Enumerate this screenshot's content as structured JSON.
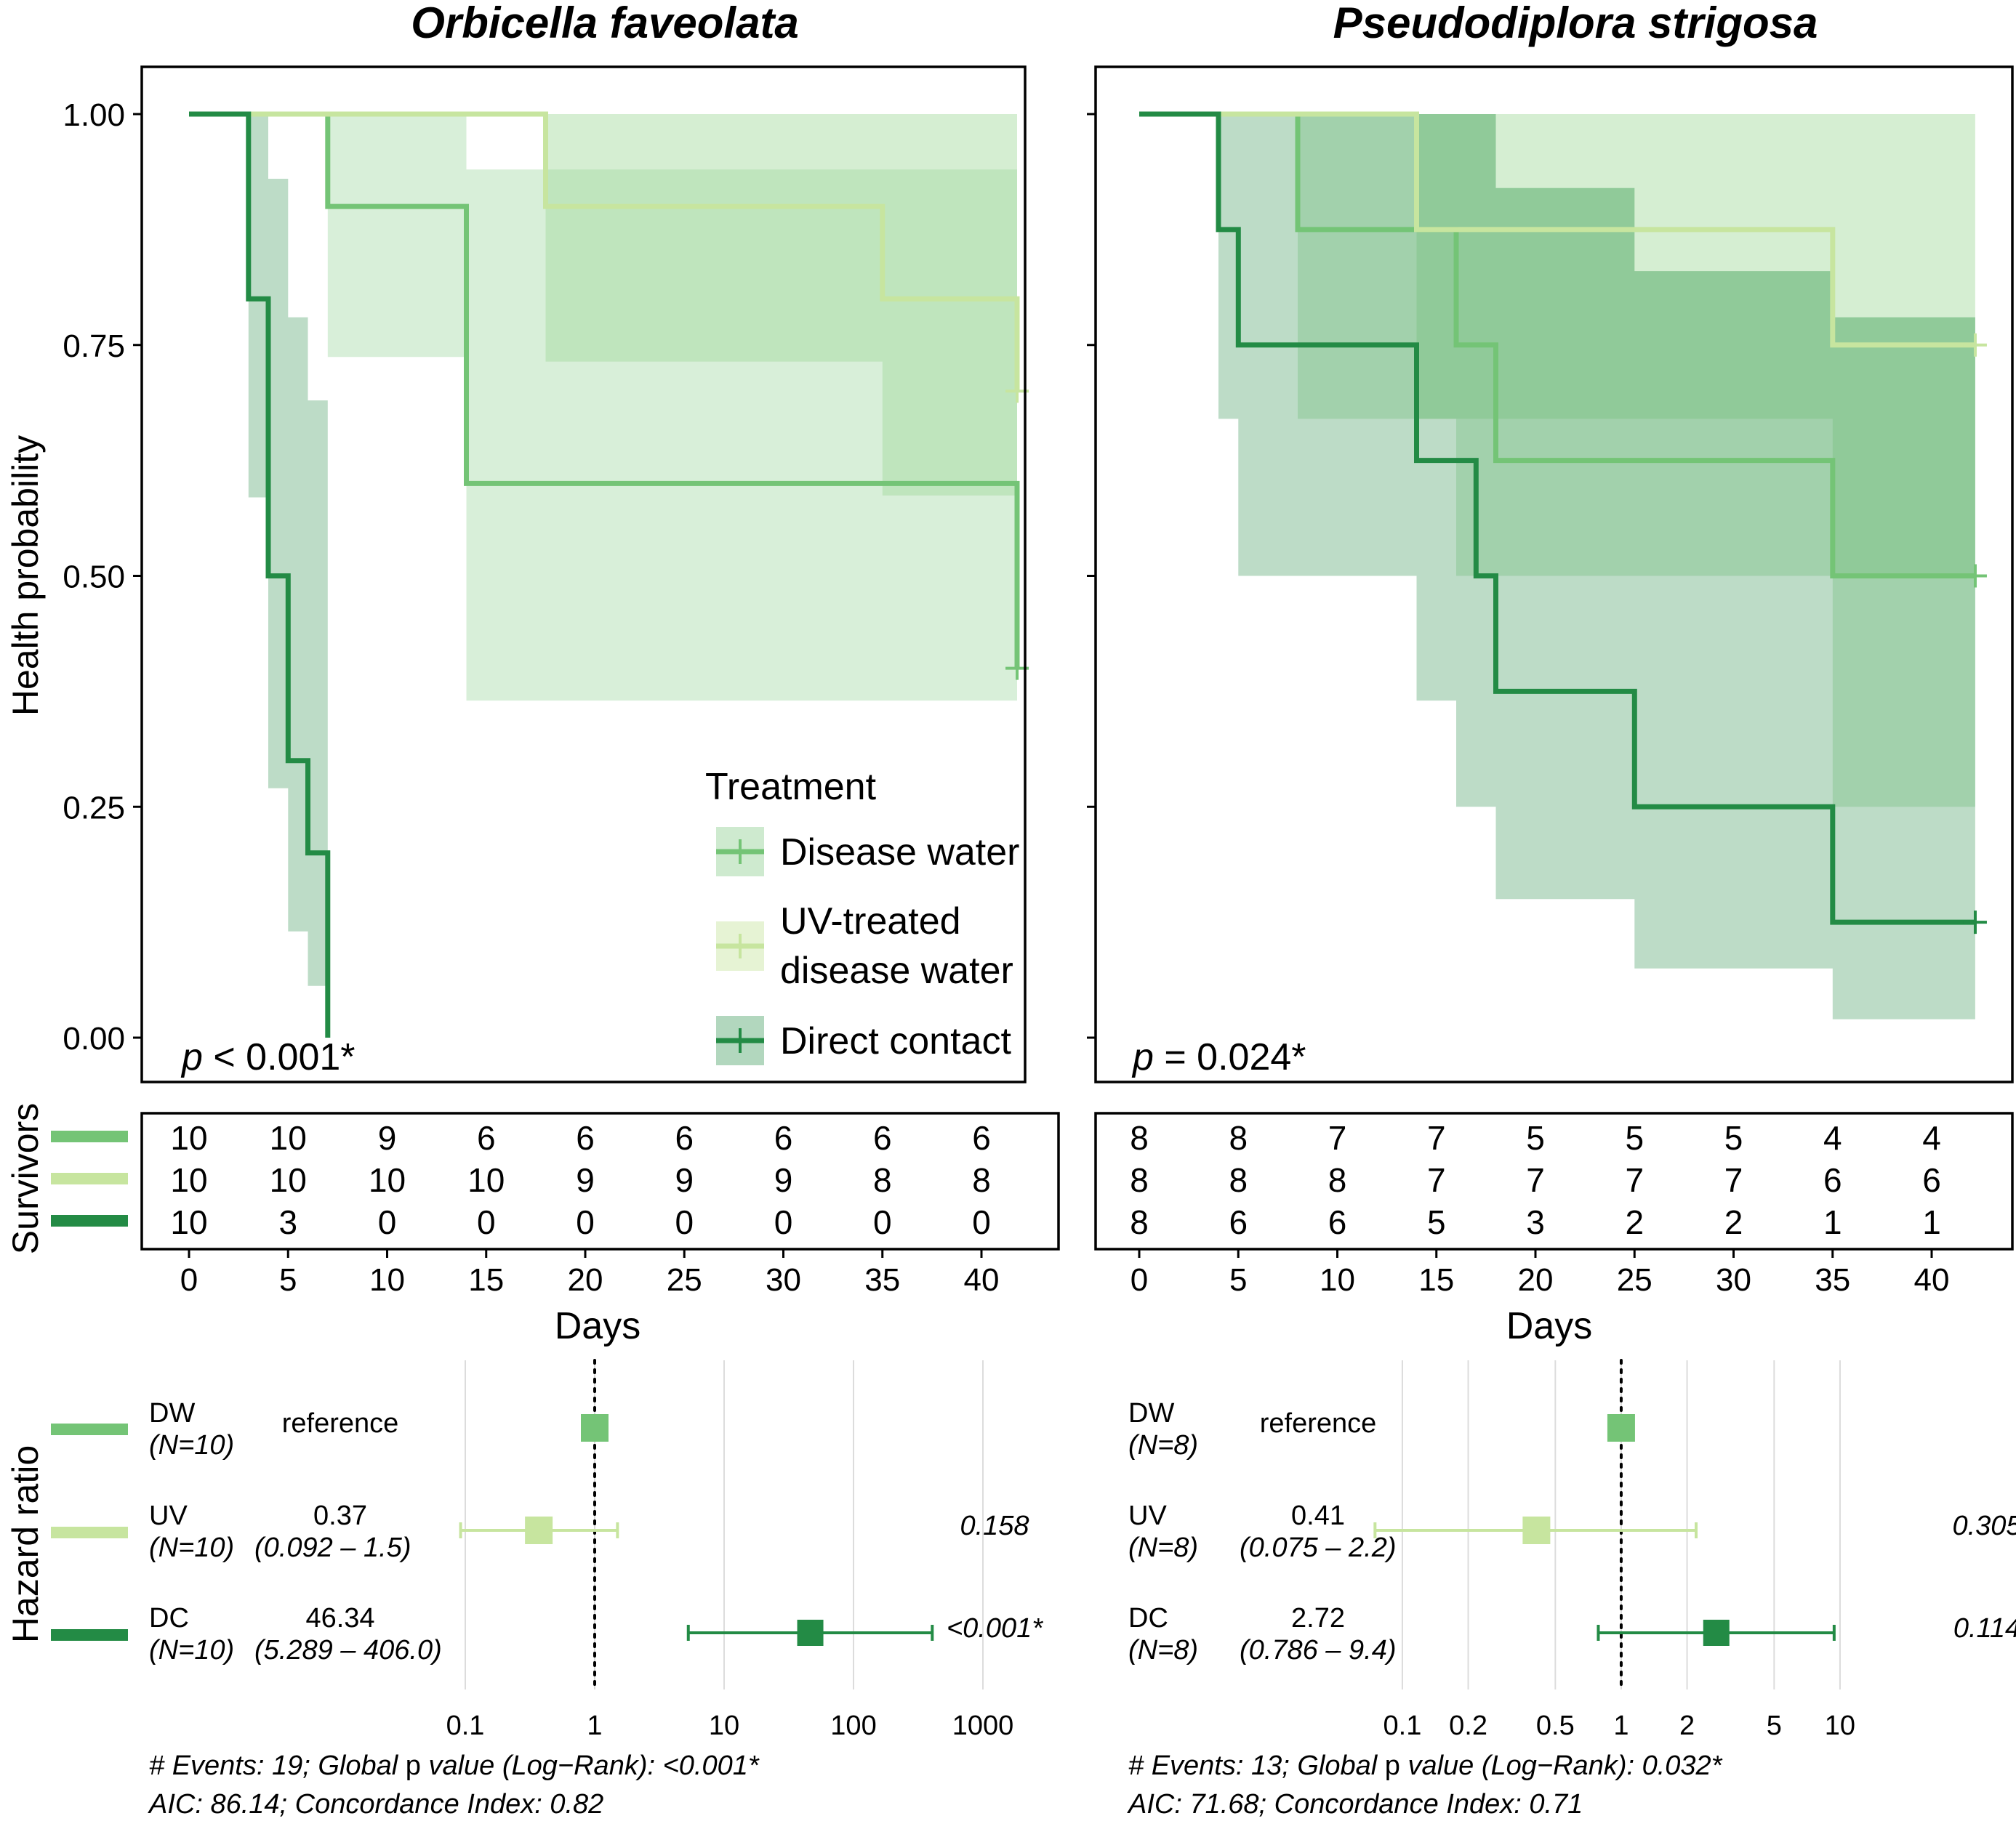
{
  "colors": {
    "disease_water": "#74c476",
    "uv_treated": "#c7e59f",
    "direct_contact": "#238b45",
    "band_dw": "#74c476",
    "band_uv": "#a1d99b",
    "band_dc": "#238b45"
  },
  "legend": {
    "title": "Treatment",
    "items": [
      "Disease water",
      "UV-treated\ndisease water",
      "Direct contact"
    ]
  },
  "labels": {
    "y_km": "Health probability",
    "y_survivors": "Survivors",
    "y_hr": "Hazard ratio",
    "x_days": "Days"
  },
  "chart_data": [
    {
      "type": "line",
      "title": "Orbicella faveolata",
      "ylabel": "Health probability",
      "xlabel": "Days",
      "xlim": [
        -2,
        43
      ],
      "ylim": [
        0,
        1
      ],
      "x_ticks": [
        0,
        5,
        10,
        15,
        20,
        25,
        30,
        35,
        40
      ],
      "y_ticks": [
        "0.00",
        "0.25",
        "0.50",
        "0.75",
        "1.00"
      ],
      "p_prefix": "p",
      "p_text": " < 0.001*",
      "series": [
        {
          "name": "Disease water",
          "steps": [
            [
              0,
              1.0
            ],
            [
              7,
              0.9
            ],
            [
              14,
              0.6
            ],
            [
              41.8,
              0.4
            ]
          ],
          "end": 41.8,
          "band": [
            [
              0,
              1.0,
              1.0
            ],
            [
              7,
              0.737,
              1.0
            ],
            [
              14,
              0.365,
              0.94
            ]
          ],
          "censor": [
            [
              41.8,
              0.4
            ]
          ]
        },
        {
          "name": "UV-treated disease water",
          "steps": [
            [
              0,
              1.0
            ],
            [
              18,
              0.9
            ],
            [
              35,
              0.8
            ],
            [
              41.8,
              0.7
            ]
          ],
          "end": 41.8,
          "band": [
            [
              0,
              1.0,
              1.0
            ],
            [
              18,
              0.732,
              1.0
            ],
            [
              35,
              0.587,
              1.0
            ],
            [
              41.8,
              0.4,
              0.86
            ]
          ],
          "censor": [
            [
              41.8,
              0.7
            ]
          ]
        },
        {
          "name": "Direct contact",
          "steps": [
            [
              0,
              1.0
            ],
            [
              3,
              0.8
            ],
            [
              4,
              0.5
            ],
            [
              5,
              0.3
            ],
            [
              6,
              0.2
            ],
            [
              7,
              0.0
            ]
          ],
          "end": 7,
          "band": [
            [
              0,
              1.0,
              1.0
            ],
            [
              3,
              0.585,
              1.0
            ],
            [
              4,
              0.27,
              0.93
            ],
            [
              5,
              0.115,
              0.78
            ],
            [
              6,
              0.056,
              0.69
            ],
            [
              7,
              0.0,
              0.0
            ]
          ],
          "censor": []
        }
      ],
      "risk_table": {
        "times": [
          0,
          5,
          10,
          15,
          20,
          25,
          30,
          35,
          40
        ],
        "rows": [
          [
            "10",
            "10",
            "9",
            "6",
            "6",
            "6",
            "6",
            "6",
            "6"
          ],
          [
            "10",
            "10",
            "10",
            "10",
            "9",
            "9",
            "9",
            "8",
            "8"
          ],
          [
            "10",
            "3",
            "0",
            "0",
            "0",
            "0",
            "0",
            "0",
            "0"
          ]
        ]
      },
      "forest": {
        "scale": "log",
        "x_ticks": [
          "0.1",
          "1",
          "10",
          "100",
          "1000"
        ],
        "x_tick_values": [
          0.1,
          1,
          10,
          100,
          1000
        ],
        "xlim_log10": [
          -1.0,
          3.0
        ],
        "rows": [
          {
            "label": "DW",
            "n": "(N=10)",
            "hr": "reference",
            "ci": "",
            "p": "",
            "estimate": 1,
            "lo": null,
            "hi": null
          },
          {
            "label": "UV",
            "n": "(N=10)",
            "hr": "0.37",
            "ci": "(0.092 –    1.5)",
            "p": "0.158",
            "estimate": 0.37,
            "lo": 0.092,
            "hi": 1.5
          },
          {
            "label": "DC",
            "n": "(N=10)",
            "hr": "46.34",
            "ci": "(5.289 – 406.0)",
            "p": "<0.001*",
            "estimate": 46.34,
            "lo": 5.289,
            "hi": 406.0
          }
        ],
        "footer1_a": "# Events: 19; Global ",
        "footer1_b": "p",
        "footer1_c": " value (Log−Rank): <0.001*",
        "footer2": "AIC: 86.14; Concordance Index: 0.82"
      }
    },
    {
      "type": "line",
      "title": "Pseudodiplora strigosa",
      "ylabel": "Health probability",
      "xlabel": "Days",
      "xlim": [
        -2,
        43
      ],
      "ylim": [
        0,
        1
      ],
      "x_ticks": [
        0,
        5,
        10,
        15,
        20,
        25,
        30,
        35,
        40
      ],
      "y_ticks": [
        "0.00",
        "0.25",
        "0.50",
        "0.75",
        "1.00"
      ],
      "p_prefix": "p",
      "p_text": " = 0.024*",
      "series": [
        {
          "name": "Disease water",
          "steps": [
            [
              0,
              1.0
            ],
            [
              8,
              0.875
            ],
            [
              16,
              0.75
            ],
            [
              18,
              0.625
            ],
            [
              35,
              0.5
            ]
          ],
          "end": 42.2,
          "band": [
            [
              0,
              1.0,
              1.0
            ],
            [
              8,
              0.67,
              1.0
            ],
            [
              16,
              0.5,
              1.0
            ],
            [
              18,
              0.5,
              0.92
            ],
            [
              25,
              0.5,
              0.83
            ],
            [
              35,
              0.25,
              0.78
            ]
          ],
          "censor": [
            [
              42.2,
              0.5
            ]
          ]
        },
        {
          "name": "UV-treated disease water",
          "steps": [
            [
              0,
              1.0
            ],
            [
              14,
              0.875
            ],
            [
              35,
              0.75
            ]
          ],
          "end": 42.2,
          "band": [
            [
              0,
              1.0,
              1.0
            ],
            [
              14,
              0.67,
              1.0
            ],
            [
              35,
              0.5,
              1.0
            ]
          ],
          "censor": [
            [
              42.2,
              0.75
            ]
          ]
        },
        {
          "name": "Direct contact",
          "steps": [
            [
              0,
              1.0
            ],
            [
              4,
              0.875
            ],
            [
              5,
              0.75
            ],
            [
              14,
              0.625
            ],
            [
              17,
              0.5
            ],
            [
              18,
              0.375
            ],
            [
              25,
              0.25
            ],
            [
              35,
              0.125
            ]
          ],
          "end": 42.2,
          "band": [
            [
              0,
              1.0,
              1.0
            ],
            [
              4,
              0.67,
              1.0
            ],
            [
              5,
              0.5,
              1.0
            ],
            [
              14,
              0.365,
              1.0
            ],
            [
              16,
              0.25,
              1.0
            ],
            [
              18,
              0.15,
              0.92
            ],
            [
              25,
              0.075,
              0.83
            ],
            [
              35,
              0.02,
              0.78
            ]
          ],
          "censor": [
            [
              42.2,
              0.125
            ]
          ]
        }
      ],
      "risk_table": {
        "times": [
          0,
          5,
          10,
          15,
          20,
          25,
          30,
          35,
          40
        ],
        "rows": [
          [
            "8",
            "8",
            "7",
            "7",
            "5",
            "5",
            "5",
            "4",
            "4"
          ],
          [
            "8",
            "8",
            "8",
            "7",
            "7",
            "7",
            "7",
            "6",
            "6"
          ],
          [
            "8",
            "6",
            "6",
            "5",
            "3",
            "2",
            "2",
            "1",
            "1"
          ]
        ]
      },
      "forest": {
        "scale": "log",
        "x_ticks": [
          "0.1",
          "0.2",
          "0.5",
          "1",
          "2",
          "5",
          "10"
        ],
        "x_tick_values": [
          0.1,
          0.2,
          0.5,
          1,
          2,
          5,
          10
        ],
        "xlim_log10": [
          -1.5,
          1.05
        ],
        "rows": [
          {
            "label": "DW",
            "n": "(N=8)",
            "hr": "reference",
            "ci": "",
            "p": "",
            "estimate": 1,
            "lo": null,
            "hi": null
          },
          {
            "label": "UV",
            "n": "(N=8)",
            "hr": "0.41",
            "ci": "(0.075 – 2.2)",
            "p": "0.305",
            "estimate": 0.41,
            "lo": 0.075,
            "hi": 2.2
          },
          {
            "label": "DC",
            "n": "(N=8)",
            "hr": "2.72",
            "ci": "(0.786 – 9.4)",
            "p": "0.114",
            "estimate": 2.72,
            "lo": 0.786,
            "hi": 9.4
          }
        ],
        "footer1_a": "# Events: 13; Global ",
        "footer1_b": "p",
        "footer1_c": " value (Log−Rank): 0.032*",
        "footer2": "AIC: 71.68; Concordance Index: 0.71"
      }
    }
  ]
}
